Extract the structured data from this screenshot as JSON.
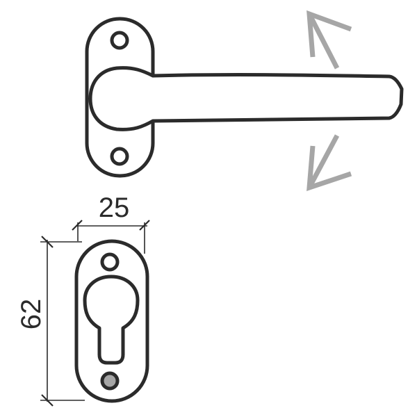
{
  "dimensions": {
    "width_label": "25",
    "height_label": "62"
  },
  "colors": {
    "stroke": "#2b2b2b",
    "arrow": "#a6a6a6",
    "background": "#ffffff"
  },
  "icons": {
    "up_arrow": "rotate-up-arrow-icon",
    "down_arrow": "rotate-down-arrow-icon"
  }
}
